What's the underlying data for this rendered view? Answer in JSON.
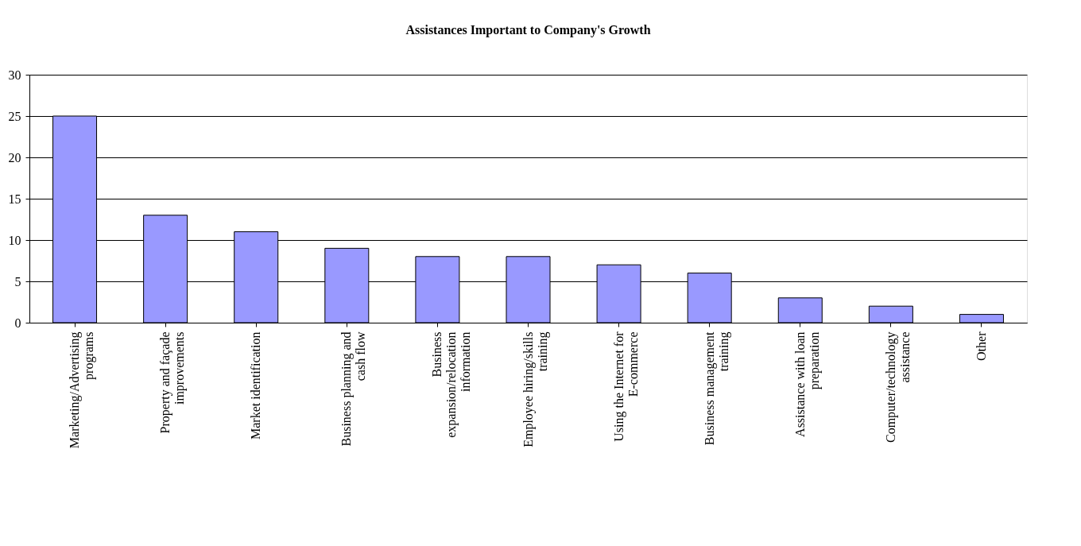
{
  "chart_data": {
    "type": "bar",
    "title": "Assistances Important to Company's Growth",
    "categories": [
      "Marketing/Advertising programs",
      "Property and façade improvements",
      "Market identification",
      "Business planning and cash flow",
      "Business expansion/relocation information",
      "Employee hiring/skills training",
      "Using the Internet for E-commerce",
      "Business management training",
      "Assistance with loan preparation",
      "Computer/technology assistance",
      "Other"
    ],
    "values": [
      25,
      13,
      11,
      9,
      8,
      8,
      7,
      6,
      3,
      2,
      1
    ],
    "color": "#9999ff",
    "ylim": [
      0,
      30
    ],
    "yticks": [
      0,
      5,
      10,
      15,
      20,
      25,
      30
    ],
    "grid": "y"
  }
}
